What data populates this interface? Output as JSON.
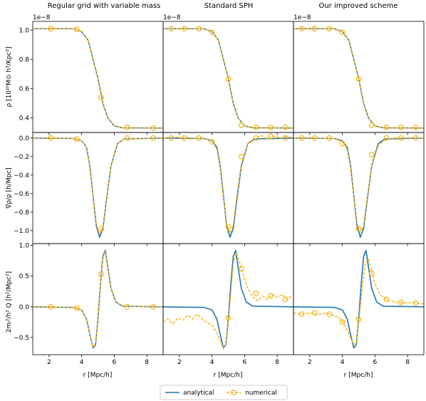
{
  "figure": {
    "column_titles": [
      "Regular grid with variable mass",
      "Standard SPH",
      "Our improved scheme"
    ],
    "row_ylabels": [
      "ρ [10¹⁰M⊙ h³/Kpc³]",
      "∇ρ/ρ [h/Mpc]",
      "2mᵢ²/h² Q [h²/Mpc²]"
    ],
    "xlabel": "r [Mpc/h]",
    "offset_label": "1e−8",
    "legend": {
      "placement": "bottom-center",
      "entries": [
        {
          "label": "analytical",
          "style": "solid",
          "color": "#1f77b4"
        },
        {
          "label": "numerical",
          "style": "dashed-circle",
          "color": "#ffb20f"
        }
      ]
    },
    "colors": {
      "analytical": "#1f77b4",
      "numerical": "#ffb20f",
      "axes": "#000000"
    }
  },
  "chart_data": [
    {
      "type": "line",
      "row": 0,
      "col": 0,
      "panel": "density-regular-grid",
      "xlim": [
        1,
        9
      ],
      "ylim": [
        0.3,
        1.06
      ],
      "xticks": [
        2,
        4,
        6,
        8
      ],
      "yticks": [
        0.4,
        0.6,
        0.8,
        1.0
      ],
      "xtick_labels": [
        "2",
        "4",
        "6",
        "8"
      ],
      "ytick_labels": [
        "0.4",
        "0.6",
        "0.8",
        "1.0"
      ],
      "series": [
        {
          "name": "analytical",
          "x": [
            1,
            3.5,
            4.0,
            4.4,
            4.7,
            5.0,
            5.3,
            5.6,
            6.0,
            6.5,
            9
          ],
          "y": [
            1.01,
            1.01,
            0.99,
            0.93,
            0.8,
            0.67,
            0.5,
            0.4,
            0.345,
            0.332,
            0.33
          ]
        },
        {
          "name": "numerical",
          "x": [
            1,
            3.5,
            4.0,
            4.4,
            4.7,
            5.0,
            5.3,
            5.6,
            6.0,
            6.5,
            9
          ],
          "y": [
            1.01,
            1.01,
            0.99,
            0.93,
            0.8,
            0.67,
            0.5,
            0.4,
            0.345,
            0.332,
            0.33
          ]
        }
      ],
      "markers": {
        "x": [
          2.1,
          3.7,
          5.2,
          6.8,
          8.4
        ],
        "y": [
          1.01,
          1.005,
          0.54,
          0.335,
          0.33
        ]
      }
    },
    {
      "type": "line",
      "row": 0,
      "col": 1,
      "panel": "density-standard-sph",
      "xlim": [
        1,
        9
      ],
      "ylim": [
        0.3,
        1.06
      ],
      "xticks": [
        2,
        4,
        6,
        8
      ],
      "yticks": [],
      "xtick_labels": [
        "2",
        "4",
        "6",
        "8"
      ],
      "ytick_labels": [],
      "series": [
        {
          "name": "analytical",
          "x": [
            1,
            3.5,
            4.0,
            4.4,
            4.7,
            5.0,
            5.3,
            5.6,
            6.0,
            6.5,
            9
          ],
          "y": [
            1.01,
            1.01,
            0.99,
            0.93,
            0.8,
            0.67,
            0.5,
            0.4,
            0.345,
            0.332,
            0.33
          ]
        },
        {
          "name": "numerical",
          "x": [
            1,
            3.5,
            4.0,
            4.4,
            4.7,
            5.0,
            5.3,
            5.6,
            6.0,
            6.5,
            9
          ],
          "y": [
            1.01,
            1.01,
            0.99,
            0.93,
            0.8,
            0.67,
            0.5,
            0.4,
            0.345,
            0.332,
            0.33
          ]
        }
      ],
      "markers": {
        "x": [
          1.5,
          2.3,
          3.2,
          4.0,
          5.0,
          5.8,
          6.7,
          7.6,
          8.5
        ],
        "y": [
          1.01,
          1.01,
          1.01,
          0.985,
          0.665,
          0.35,
          0.335,
          0.335,
          0.335
        ]
      }
    },
    {
      "type": "line",
      "row": 0,
      "col": 2,
      "panel": "density-improved-scheme",
      "xlim": [
        1,
        9
      ],
      "ylim": [
        0.3,
        1.06
      ],
      "xticks": [
        2,
        4,
        6,
        8
      ],
      "yticks": [],
      "xtick_labels": [
        "2",
        "4",
        "6",
        "8"
      ],
      "ytick_labels": [],
      "series": [
        {
          "name": "analytical",
          "x": [
            1,
            3.5,
            4.0,
            4.4,
            4.7,
            5.0,
            5.3,
            5.6,
            6.0,
            6.5,
            9
          ],
          "y": [
            1.01,
            1.01,
            0.99,
            0.93,
            0.8,
            0.67,
            0.5,
            0.4,
            0.345,
            0.332,
            0.33
          ]
        },
        {
          "name": "numerical",
          "x": [
            1,
            3.5,
            4.0,
            4.4,
            4.7,
            5.0,
            5.3,
            5.6,
            6.0,
            6.5,
            9
          ],
          "y": [
            1.01,
            1.01,
            0.99,
            0.93,
            0.8,
            0.67,
            0.5,
            0.4,
            0.345,
            0.332,
            0.33
          ]
        }
      ],
      "markers": {
        "x": [
          1.5,
          2.3,
          3.2,
          4.0,
          5.0,
          5.8,
          6.7,
          7.6,
          8.5
        ],
        "y": [
          1.01,
          1.01,
          1.01,
          0.985,
          0.665,
          0.35,
          0.335,
          0.335,
          0.335
        ]
      }
    },
    {
      "type": "line",
      "row": 1,
      "col": 0,
      "panel": "gradient-regular-grid",
      "xlim": [
        1,
        9
      ],
      "ylim": [
        -1.14,
        0.06
      ],
      "xticks": [
        2,
        4,
        6,
        8
      ],
      "yticks": [
        -1.0,
        -0.8,
        -0.6,
        -0.4,
        -0.2,
        0.0
      ],
      "xtick_labels": [
        "2",
        "4",
        "6",
        "8"
      ],
      "ytick_labels": [
        "−1.0",
        "−0.8",
        "−0.6",
        "−0.4",
        "−0.2",
        "0.0"
      ],
      "series": [
        {
          "name": "analytical",
          "x": [
            1,
            3.5,
            4.0,
            4.3,
            4.5,
            4.7,
            4.9,
            5.1,
            5.3,
            5.5,
            5.8,
            6.2,
            6.6,
            9
          ],
          "y": [
            0,
            -0.005,
            -0.03,
            -0.1,
            -0.3,
            -0.62,
            -0.95,
            -1.07,
            -0.98,
            -0.7,
            -0.3,
            -0.06,
            -0.01,
            0
          ]
        },
        {
          "name": "numerical",
          "x": [
            1,
            3.5,
            4.0,
            4.3,
            4.5,
            4.7,
            4.9,
            5.1,
            5.3,
            5.5,
            5.8,
            6.2,
            6.6,
            9
          ],
          "y": [
            0,
            -0.005,
            -0.03,
            -0.1,
            -0.3,
            -0.62,
            -0.93,
            -1.04,
            -0.96,
            -0.7,
            -0.3,
            -0.06,
            -0.01,
            0
          ]
        }
      ],
      "markers": {
        "x": [
          2.1,
          3.7,
          5.2,
          6.8,
          8.4
        ],
        "y": [
          0.0,
          -0.01,
          -0.98,
          0.0,
          0.0
        ]
      }
    },
    {
      "type": "line",
      "row": 1,
      "col": 1,
      "panel": "gradient-standard-sph",
      "xlim": [
        1,
        9
      ],
      "ylim": [
        -1.14,
        0.06
      ],
      "xticks": [
        2,
        4,
        6,
        8
      ],
      "yticks": [],
      "xtick_labels": [
        "2",
        "4",
        "6",
        "8"
      ],
      "ytick_labels": [],
      "series": [
        {
          "name": "analytical",
          "x": [
            1,
            3.5,
            4.0,
            4.3,
            4.5,
            4.7,
            4.9,
            5.1,
            5.3,
            5.5,
            5.8,
            6.2,
            6.6,
            9
          ],
          "y": [
            0,
            -0.005,
            -0.03,
            -0.1,
            -0.3,
            -0.62,
            -0.95,
            -1.07,
            -0.98,
            -0.7,
            -0.3,
            -0.06,
            -0.01,
            0
          ]
        },
        {
          "name": "numerical",
          "x": [
            1,
            1.8,
            2.6,
            3.4,
            4.0,
            4.3,
            4.5,
            4.7,
            4.9,
            5.1,
            5.3,
            5.5,
            5.8,
            6.2,
            6.6,
            7.0,
            7.4,
            7.8,
            8.2,
            8.6,
            9
          ],
          "y": [
            0,
            0.01,
            -0.01,
            0.0,
            -0.03,
            -0.12,
            -0.32,
            -0.64,
            -0.93,
            -1.03,
            -0.94,
            -0.66,
            -0.28,
            -0.06,
            -0.02,
            0.03,
            -0.01,
            0.02,
            0.0,
            0.02,
            0.0
          ]
        }
      ],
      "markers": {
        "x": [
          1.5,
          2.3,
          3.2,
          4.0,
          5.0,
          5.8,
          6.7,
          7.6,
          8.5
        ],
        "y": [
          0.0,
          0.0,
          0.0,
          -0.04,
          -0.96,
          -0.2,
          0.0,
          0.02,
          0.0
        ]
      }
    },
    {
      "type": "line",
      "row": 1,
      "col": 2,
      "panel": "gradient-improved-scheme",
      "xlim": [
        1,
        9
      ],
      "ylim": [
        -1.14,
        0.06
      ],
      "xticks": [
        2,
        4,
        6,
        8
      ],
      "yticks": [],
      "xtick_labels": [
        "2",
        "4",
        "6",
        "8"
      ],
      "ytick_labels": [],
      "series": [
        {
          "name": "analytical",
          "x": [
            1,
            3.5,
            4.0,
            4.3,
            4.5,
            4.7,
            4.9,
            5.1,
            5.3,
            5.5,
            5.8,
            6.2,
            6.6,
            9
          ],
          "y": [
            0,
            -0.005,
            -0.03,
            -0.1,
            -0.3,
            -0.62,
            -0.95,
            -1.07,
            -0.98,
            -0.7,
            -0.3,
            -0.06,
            -0.01,
            0
          ]
        },
        {
          "name": "numerical",
          "x": [
            1,
            3.5,
            4.0,
            4.3,
            4.5,
            4.7,
            4.9,
            5.1,
            5.3,
            5.5,
            5.8,
            6.2,
            6.6,
            7.2,
            8.0,
            9
          ],
          "y": [
            0,
            -0.005,
            -0.04,
            -0.12,
            -0.32,
            -0.63,
            -0.92,
            -1.02,
            -0.95,
            -0.68,
            -0.3,
            -0.08,
            -0.02,
            0.0,
            0.0,
            0
          ]
        }
      ],
      "markers": {
        "x": [
          1.5,
          2.3,
          3.2,
          4.0,
          5.0,
          5.8,
          6.7,
          7.6,
          8.5
        ],
        "y": [
          0.0,
          0.0,
          0.0,
          -0.06,
          -0.98,
          -0.18,
          0.0,
          0.0,
          0.0
        ]
      }
    },
    {
      "type": "line",
      "row": 2,
      "col": 0,
      "panel": "q-regular-grid",
      "xlim": [
        1,
        9
      ],
      "ylim": [
        -0.78,
        1.03
      ],
      "xticks": [
        2,
        4,
        6,
        8
      ],
      "yticks": [
        -0.5,
        0.0,
        0.5,
        1.0
      ],
      "xtick_labels": [
        "2",
        "4",
        "6",
        "8"
      ],
      "ytick_labels": [
        "−0.5",
        "0.0",
        "0.5",
        "1.0"
      ],
      "series": [
        {
          "name": "analytical",
          "x": [
            1,
            3.5,
            4.0,
            4.3,
            4.5,
            4.7,
            4.85,
            5.0,
            5.15,
            5.3,
            5.45,
            5.6,
            5.8,
            6.1,
            6.5,
            9
          ],
          "y": [
            0,
            -0.01,
            -0.05,
            -0.2,
            -0.45,
            -0.67,
            -0.62,
            -0.2,
            0.35,
            0.82,
            0.92,
            0.65,
            0.3,
            0.08,
            0.01,
            0
          ]
        },
        {
          "name": "numerical",
          "x": [
            1,
            3.5,
            4.0,
            4.3,
            4.5,
            4.7,
            4.85,
            5.0,
            5.15,
            5.3,
            5.45,
            5.6,
            5.8,
            6.1,
            6.5,
            9
          ],
          "y": [
            0,
            -0.01,
            -0.05,
            -0.2,
            -0.45,
            -0.66,
            -0.6,
            -0.18,
            0.35,
            0.8,
            0.9,
            0.63,
            0.3,
            0.08,
            0.01,
            0
          ]
        }
      ],
      "markers": {
        "x": [
          2.1,
          3.7,
          5.2,
          6.8,
          8.4
        ],
        "y": [
          0.0,
          -0.02,
          0.53,
          0.0,
          0.0
        ]
      }
    },
    {
      "type": "line",
      "row": 2,
      "col": 1,
      "panel": "q-standard-sph",
      "xlim": [
        1,
        9
      ],
      "ylim": [
        -0.78,
        1.03
      ],
      "xticks": [
        2,
        4,
        6,
        8
      ],
      "yticks": [],
      "xtick_labels": [
        "2",
        "4",
        "6",
        "8"
      ],
      "ytick_labels": [],
      "series": [
        {
          "name": "analytical",
          "x": [
            1,
            3.5,
            4.0,
            4.3,
            4.5,
            4.7,
            4.85,
            5.0,
            5.15,
            5.3,
            5.45,
            5.6,
            5.8,
            6.1,
            6.5,
            9
          ],
          "y": [
            0,
            -0.01,
            -0.05,
            -0.2,
            -0.45,
            -0.67,
            -0.62,
            -0.2,
            0.35,
            0.82,
            0.92,
            0.65,
            0.3,
            0.08,
            0.01,
            0
          ]
        },
        {
          "name": "numerical",
          "x": [
            1,
            1.3,
            1.6,
            1.9,
            2.2,
            2.5,
            2.8,
            3.1,
            3.4,
            3.7,
            4.0,
            4.3,
            4.5,
            4.7,
            4.85,
            5.0,
            5.15,
            5.3,
            5.5,
            5.7,
            5.9,
            6.2,
            6.5,
            6.8,
            7.1,
            7.4,
            7.7,
            8.0,
            8.3,
            8.6,
            8.9
          ],
          "y": [
            -0.25,
            -0.2,
            -0.28,
            -0.18,
            -0.22,
            -0.14,
            -0.2,
            -0.12,
            -0.2,
            -0.26,
            -0.3,
            -0.42,
            -0.55,
            -0.68,
            -0.6,
            -0.25,
            0.2,
            0.7,
            0.88,
            0.72,
            0.52,
            0.3,
            0.16,
            0.1,
            0.18,
            0.12,
            0.2,
            0.15,
            0.2,
            0.12,
            0.18
          ]
        }
      ],
      "markers": {
        "x": [
          5.0,
          5.8,
          6.7,
          7.6,
          8.5
        ],
        "y": [
          -0.18,
          0.62,
          0.22,
          0.18,
          0.12
        ]
      }
    },
    {
      "type": "line",
      "row": 2,
      "col": 2,
      "panel": "q-improved-scheme",
      "xlim": [
        1,
        9
      ],
      "ylim": [
        -0.78,
        1.03
      ],
      "xticks": [
        2,
        4,
        6,
        8
      ],
      "yticks": [],
      "xtick_labels": [
        "2",
        "4",
        "6",
        "8"
      ],
      "ytick_labels": [],
      "series": [
        {
          "name": "analytical",
          "x": [
            1,
            3.5,
            4.0,
            4.3,
            4.5,
            4.7,
            4.85,
            5.0,
            5.15,
            5.3,
            5.45,
            5.6,
            5.8,
            6.1,
            6.5,
            9
          ],
          "y": [
            0,
            -0.01,
            -0.05,
            -0.2,
            -0.45,
            -0.67,
            -0.62,
            -0.2,
            0.35,
            0.82,
            0.92,
            0.65,
            0.3,
            0.08,
            0.01,
            0
          ]
        },
        {
          "name": "numerical",
          "x": [
            1,
            1.5,
            2.0,
            2.5,
            3.0,
            3.5,
            3.9,
            4.2,
            4.5,
            4.7,
            4.85,
            5.0,
            5.2,
            5.4,
            5.6,
            5.9,
            6.3,
            6.8,
            7.3,
            7.8,
            8.3,
            8.8,
            9
          ],
          "y": [
            -0.1,
            -0.12,
            -0.1,
            -0.13,
            -0.1,
            -0.14,
            -0.2,
            -0.32,
            -0.5,
            -0.62,
            -0.58,
            -0.25,
            0.25,
            0.7,
            0.78,
            0.45,
            0.2,
            0.1,
            0.08,
            0.06,
            0.07,
            0.05,
            0.05
          ]
        }
      ],
      "markers": {
        "x": [
          1.5,
          2.3,
          3.2,
          4.0,
          5.0,
          5.8,
          6.7,
          7.6,
          8.5
        ],
        "y": [
          -0.12,
          -0.1,
          -0.12,
          -0.25,
          -0.2,
          0.55,
          0.12,
          0.07,
          0.06
        ]
      }
    }
  ]
}
